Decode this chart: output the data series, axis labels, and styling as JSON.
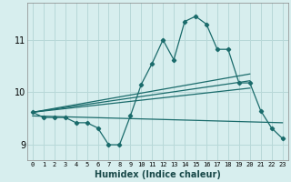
{
  "title": "",
  "xlabel": "Humidex (Indice chaleur)",
  "ylabel": "",
  "bg_color": "#d7eeee",
  "grid_color": "#b8d8d8",
  "line_color": "#1a6b6b",
  "xlim": [
    -0.5,
    23.5
  ],
  "ylim": [
    8.7,
    11.7
  ],
  "yticks": [
    9,
    10,
    11
  ],
  "xticks": [
    0,
    1,
    2,
    3,
    4,
    5,
    6,
    7,
    8,
    9,
    10,
    11,
    12,
    13,
    14,
    15,
    16,
    17,
    18,
    19,
    20,
    21,
    22,
    23
  ],
  "main_x": [
    0,
    1,
    2,
    3,
    4,
    5,
    6,
    7,
    8,
    9,
    10,
    11,
    12,
    13,
    14,
    15,
    16,
    17,
    18,
    19,
    20,
    21,
    22,
    23
  ],
  "main_y": [
    9.62,
    9.52,
    9.52,
    9.52,
    9.42,
    9.42,
    9.32,
    9.0,
    9.0,
    9.55,
    10.15,
    10.55,
    11.0,
    10.62,
    11.35,
    11.45,
    11.3,
    10.82,
    10.82,
    10.18,
    10.18,
    9.65,
    9.32,
    9.12
  ],
  "line2_x": [
    0,
    20
  ],
  "line2_y": [
    9.62,
    10.35
  ],
  "line3_x": [
    0,
    20
  ],
  "line3_y": [
    9.62,
    10.22
  ],
  "line4_x": [
    0,
    20
  ],
  "line4_y": [
    9.62,
    10.08
  ],
  "line5_x": [
    0,
    23
  ],
  "line5_y": [
    9.55,
    9.42
  ]
}
